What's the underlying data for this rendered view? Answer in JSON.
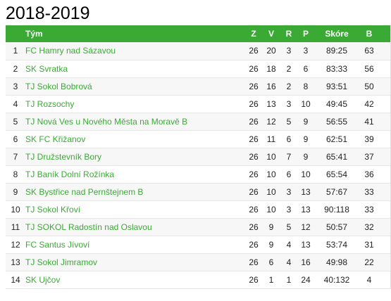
{
  "title": "2018-2019",
  "columns": {
    "rank": "",
    "team": "Tým",
    "played": "Z",
    "wins": "V",
    "draws": "R",
    "losses": "P",
    "score": "Skóre",
    "points": "B"
  },
  "rows": [
    {
      "rank": "1",
      "team": "FC Hamry nad Sázavou",
      "played": "26",
      "wins": "20",
      "draws": "3",
      "losses": "3",
      "score": "89:25",
      "points": "63"
    },
    {
      "rank": "2",
      "team": "SK Svratka",
      "played": "26",
      "wins": "18",
      "draws": "2",
      "losses": "6",
      "score": "83:33",
      "points": "56"
    },
    {
      "rank": "3",
      "team": "TJ Sokol Bobrová",
      "played": "26",
      "wins": "16",
      "draws": "2",
      "losses": "8",
      "score": "93:51",
      "points": "50"
    },
    {
      "rank": "4",
      "team": "TJ Rozsochy",
      "played": "26",
      "wins": "13",
      "draws": "3",
      "losses": "10",
      "score": "49:45",
      "points": "42"
    },
    {
      "rank": "5",
      "team": "TJ Nová Ves u Nového Města na Moravě B",
      "played": "26",
      "wins": "12",
      "draws": "5",
      "losses": "9",
      "score": "56:55",
      "points": "41"
    },
    {
      "rank": "6",
      "team": "SK FC Křižanov",
      "played": "26",
      "wins": "11",
      "draws": "6",
      "losses": "9",
      "score": "62:51",
      "points": "39"
    },
    {
      "rank": "7",
      "team": "TJ Družstevník Bory",
      "played": "26",
      "wins": "10",
      "draws": "7",
      "losses": "9",
      "score": "65:41",
      "points": "37"
    },
    {
      "rank": "8",
      "team": "TJ Baník Dolní Rožínka",
      "played": "26",
      "wins": "10",
      "draws": "6",
      "losses": "10",
      "score": "65:54",
      "points": "36"
    },
    {
      "rank": "9",
      "team": "SK Bystřice nad Pernštejnem B",
      "played": "26",
      "wins": "10",
      "draws": "3",
      "losses": "13",
      "score": "57:67",
      "points": "33"
    },
    {
      "rank": "10",
      "team": "TJ Sokol Křoví",
      "played": "26",
      "wins": "10",
      "draws": "3",
      "losses": "13",
      "score": "90:118",
      "points": "33"
    },
    {
      "rank": "11",
      "team": "TJ SOKOL Radostín nad Oslavou",
      "played": "26",
      "wins": "9",
      "draws": "5",
      "losses": "12",
      "score": "50:57",
      "points": "32"
    },
    {
      "rank": "12",
      "team": "FC Santus Jívoví",
      "played": "26",
      "wins": "9",
      "draws": "4",
      "losses": "13",
      "score": "53:74",
      "points": "31"
    },
    {
      "rank": "13",
      "team": "TJ Sokol Jimramov",
      "played": "26",
      "wins": "6",
      "draws": "4",
      "losses": "16",
      "score": "49:98",
      "points": "22"
    },
    {
      "rank": "14",
      "team": "SK Ujčov",
      "played": "26",
      "wins": "1",
      "draws": "1",
      "losses": "24",
      "score": "40:132",
      "points": "4"
    }
  ],
  "colors": {
    "header_bg": "#3aaa35",
    "header_text": "#ffffff",
    "link": "#3aaa35",
    "row_odd": "#f7f7f7",
    "row_even": "#ffffff"
  }
}
